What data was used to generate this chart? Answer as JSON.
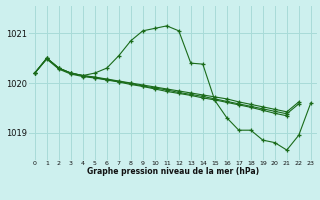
{
  "title": "Graphe pression niveau de la mer (hPa)",
  "bg_color": "#cdf0ee",
  "grid_color": "#a8dbd8",
  "line_color": "#1a6b1a",
  "xlim": [
    -0.5,
    23.5
  ],
  "ylim": [
    1018.45,
    1021.55
  ],
  "yticks": [
    1019,
    1020,
    1021
  ],
  "xticks": [
    0,
    1,
    2,
    3,
    4,
    5,
    6,
    7,
    8,
    9,
    10,
    11,
    12,
    13,
    14,
    15,
    16,
    17,
    18,
    19,
    20,
    21,
    22,
    23
  ],
  "s1_x": [
    0,
    1,
    2,
    3,
    4,
    5,
    6,
    7,
    8,
    9,
    10,
    11,
    12,
    13,
    14,
    15,
    16,
    17,
    18,
    19,
    20,
    21,
    22,
    23
  ],
  "s1_y": [
    1020.2,
    1020.5,
    1020.3,
    1020.2,
    1020.15,
    1020.2,
    1020.3,
    1020.55,
    1020.85,
    1021.05,
    1021.1,
    1021.15,
    1021.05,
    1020.4,
    1020.38,
    1019.65,
    1019.3,
    1019.05,
    1019.05,
    1018.85,
    1018.8,
    1018.65,
    1018.95,
    1019.6
  ],
  "s2_x": [
    0,
    1,
    2,
    3,
    4,
    5,
    6,
    7,
    8,
    9,
    10,
    11,
    12,
    13,
    14,
    15,
    16,
    17,
    18,
    19,
    20,
    21,
    22
  ],
  "s2_y": [
    1020.2,
    1020.5,
    1020.3,
    1020.2,
    1020.15,
    1020.12,
    1020.08,
    1020.04,
    1020.0,
    1019.96,
    1019.92,
    1019.88,
    1019.84,
    1019.8,
    1019.76,
    1019.72,
    1019.68,
    1019.62,
    1019.57,
    1019.52,
    1019.47,
    1019.42,
    1019.62
  ],
  "s3_x": [
    0,
    1,
    2,
    3,
    4,
    5,
    6,
    7,
    8,
    9,
    10,
    11,
    12,
    13,
    14,
    15,
    16,
    17,
    18,
    19,
    20,
    21
  ],
  "s3_y": [
    1020.2,
    1020.48,
    1020.28,
    1020.18,
    1020.13,
    1020.1,
    1020.06,
    1020.02,
    1019.97,
    1019.93,
    1019.88,
    1019.83,
    1019.79,
    1019.75,
    1019.7,
    1019.66,
    1019.61,
    1019.56,
    1019.51,
    1019.45,
    1019.39,
    1019.34
  ],
  "s4_x": [
    0,
    1,
    2,
    3,
    4,
    5,
    6,
    7,
    8,
    9,
    10,
    11,
    12,
    13,
    14,
    15,
    16,
    17,
    18,
    19,
    20,
    21,
    22
  ],
  "s4_y": [
    1020.2,
    1020.5,
    1020.3,
    1020.2,
    1020.15,
    1020.11,
    1020.07,
    1020.03,
    1019.99,
    1019.94,
    1019.9,
    1019.86,
    1019.81,
    1019.77,
    1019.73,
    1019.68,
    1019.63,
    1019.58,
    1019.53,
    1019.48,
    1019.43,
    1019.38,
    1019.58
  ]
}
